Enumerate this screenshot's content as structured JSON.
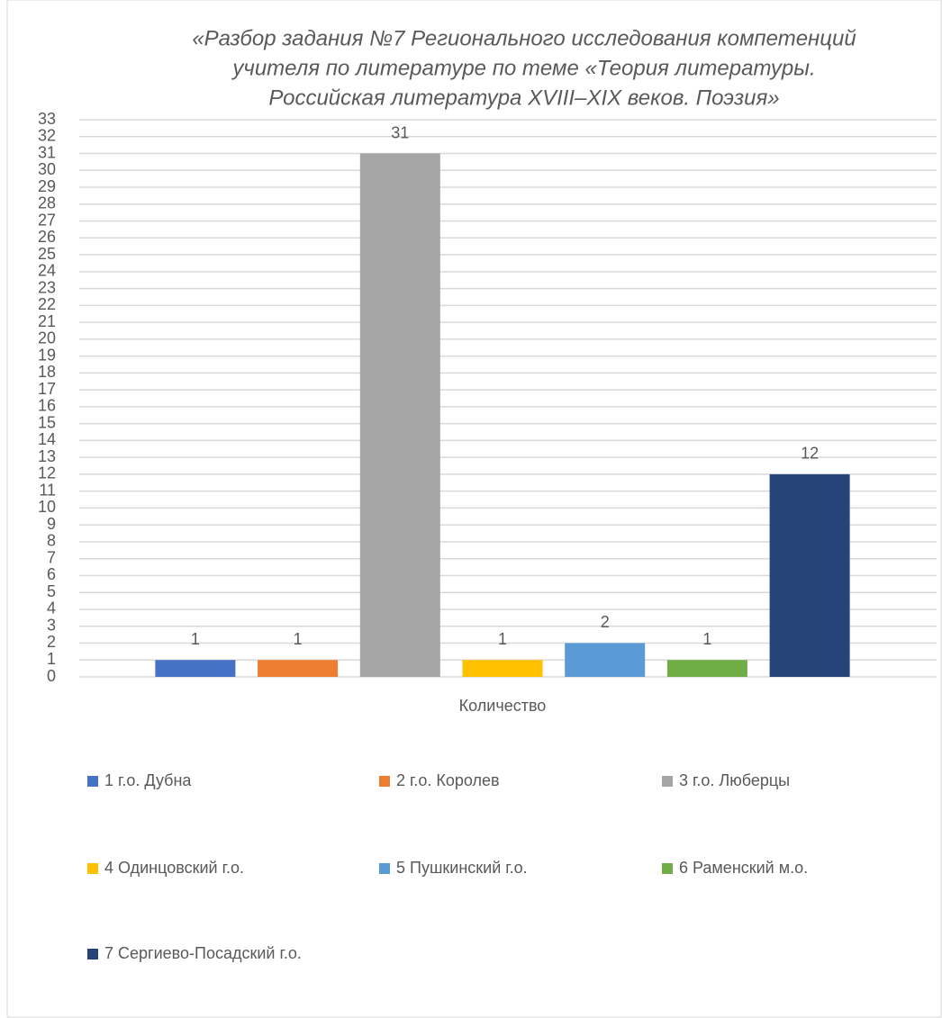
{
  "chart_data": {
    "type": "bar",
    "title": [
      "«Разбор задания №7 Регионального исследования компетенций",
      "учителя по литературе по теме «Теория литературы.",
      "Российская литература XVIII–XIX веков. Поэзия»"
    ],
    "categories": [
      "Количество"
    ],
    "series": [
      {
        "name": "1 г.о. Дубна",
        "color": "#4472c4",
        "values": [
          1
        ]
      },
      {
        "name": "2 г.о. Королев",
        "color": "#ed7d31",
        "values": [
          1
        ]
      },
      {
        "name": "3 г.о. Люберцы",
        "color": "#a5a5a5",
        "values": [
          31
        ]
      },
      {
        "name": "4 Одинцовский г.о.",
        "color": "#ffc000",
        "values": [
          1
        ]
      },
      {
        "name": "5 Пушкинский г.о.",
        "color": "#5b9bd5",
        "values": [
          2
        ]
      },
      {
        "name": "6 Раменский м.о.",
        "color": "#70ad47",
        "values": [
          1
        ]
      },
      {
        "name": "7 Сергиево-Посадский г.о.",
        "color": "#264478",
        "values": [
          12
        ]
      }
    ],
    "ylim": [
      0,
      33
    ],
    "yticks": [
      0,
      1,
      2,
      3,
      4,
      5,
      6,
      7,
      8,
      9,
      10,
      11,
      12,
      13,
      14,
      15,
      16,
      17,
      18,
      19,
      20,
      21,
      22,
      23,
      24,
      25,
      26,
      27,
      28,
      29,
      30,
      31,
      32,
      33
    ],
    "grid": true,
    "legend": "bottom"
  }
}
